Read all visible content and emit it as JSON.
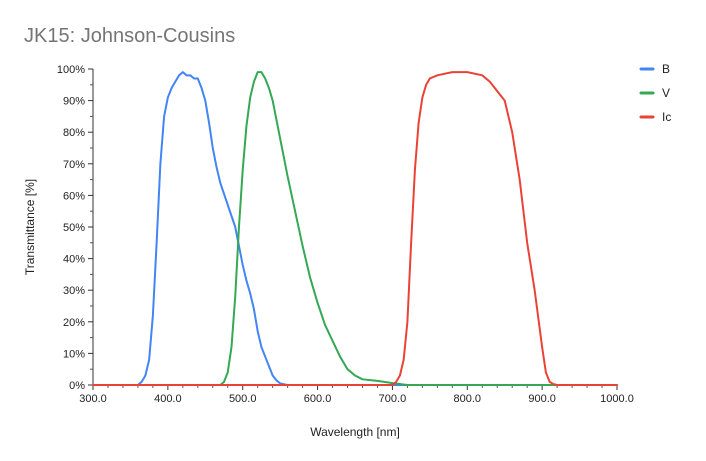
{
  "chart_data": {
    "type": "line",
    "title": "JK15: Johnson-Cousins",
    "xlabel": "Wavelength [nm]",
    "ylabel": "Transmittance [%]",
    "xlim": [
      300,
      1000
    ],
    "ylim": [
      0,
      100
    ],
    "x_ticks": [
      300,
      400,
      500,
      600,
      700,
      800,
      900,
      1000
    ],
    "x_tick_labels": [
      "300.0",
      "400.0",
      "500.0",
      "600.0",
      "700.0",
      "800.0",
      "900.0",
      "1000.0"
    ],
    "y_ticks": [
      0,
      10,
      20,
      30,
      40,
      50,
      60,
      70,
      80,
      90,
      100
    ],
    "y_tick_labels": [
      "0%",
      "10%",
      "20%",
      "30%",
      "40%",
      "50%",
      "60%",
      "70%",
      "80%",
      "90%",
      "100%"
    ],
    "grid": false,
    "legend_position": "top-right",
    "series": [
      {
        "name": "B",
        "color": "#4285F4",
        "x": [
          300,
          360,
          365,
          370,
          375,
          380,
          385,
          390,
          395,
          400,
          405,
          410,
          415,
          420,
          425,
          430,
          435,
          440,
          445,
          450,
          455,
          460,
          465,
          470,
          480,
          490,
          495,
          500,
          505,
          510,
          515,
          520,
          525,
          530,
          535,
          540,
          545,
          550,
          560,
          570,
          1000
        ],
        "y": [
          0,
          0,
          1,
          3,
          8,
          22,
          45,
          70,
          85,
          91,
          94,
          96,
          98,
          99,
          98,
          98,
          97,
          97,
          94,
          90,
          83,
          75,
          69,
          64,
          57,
          50,
          44,
          38,
          33,
          29,
          24,
          17,
          12,
          9,
          6,
          3,
          1.5,
          0.5,
          0,
          0,
          0
        ]
      },
      {
        "name": "V",
        "color": "#34A853",
        "x": [
          300,
          470,
          475,
          480,
          485,
          490,
          495,
          500,
          505,
          510,
          515,
          520,
          525,
          530,
          535,
          540,
          545,
          550,
          555,
          560,
          570,
          580,
          590,
          600,
          610,
          620,
          630,
          640,
          650,
          660,
          680,
          700,
          720,
          1000
        ],
        "y": [
          0,
          0,
          1,
          4,
          12,
          28,
          50,
          68,
          82,
          91,
          96,
          99,
          99,
          97,
          94,
          90,
          84,
          78,
          72,
          66,
          55,
          44,
          34,
          26,
          19,
          14,
          9,
          5,
          3,
          1.8,
          1.3,
          0.6,
          0,
          0
        ]
      },
      {
        "name": "Ic",
        "color": "#EA4335",
        "x": [
          300,
          700,
          705,
          710,
          715,
          720,
          725,
          730,
          735,
          740,
          745,
          750,
          760,
          780,
          800,
          820,
          830,
          840,
          850,
          860,
          870,
          880,
          890,
          900,
          905,
          910,
          915,
          920,
          1000
        ],
        "y": [
          0,
          0,
          1,
          3,
          8,
          20,
          45,
          68,
          83,
          91,
          95,
          97,
          98,
          99,
          99,
          98,
          96,
          93,
          90,
          80,
          65,
          45,
          30,
          12,
          4,
          1,
          0.3,
          0,
          0
        ]
      }
    ]
  }
}
